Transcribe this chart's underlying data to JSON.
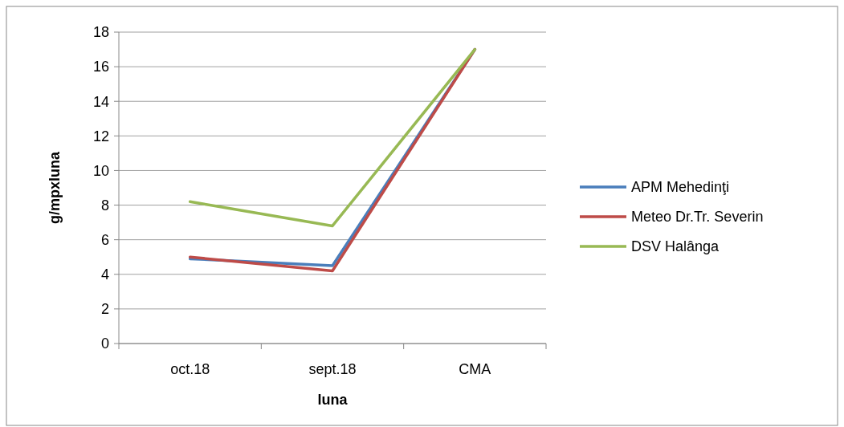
{
  "chart_data": {
    "type": "line",
    "xlabel": "luna",
    "ylabel": "g/mpxluna",
    "categories": [
      "oct.18",
      "sept.18",
      "CMA"
    ],
    "series": [
      {
        "name": "APM Mehedinţi",
        "color": "#4a7ebb",
        "values": [
          4.9,
          4.5,
          17
        ]
      },
      {
        "name": "Meteo Dr.Tr. Severin",
        "color": "#be4b48",
        "values": [
          5.0,
          4.2,
          17
        ]
      },
      {
        "name": "DSV Halânga",
        "color": "#98b954",
        "values": [
          8.2,
          6.8,
          17
        ]
      }
    ],
    "ylim": [
      0,
      18
    ],
    "yticks": [
      0,
      2,
      4,
      6,
      8,
      10,
      12,
      14,
      16,
      18
    ],
    "grid": "y",
    "legend": "right",
    "marker": "none",
    "line_style": "solid"
  }
}
